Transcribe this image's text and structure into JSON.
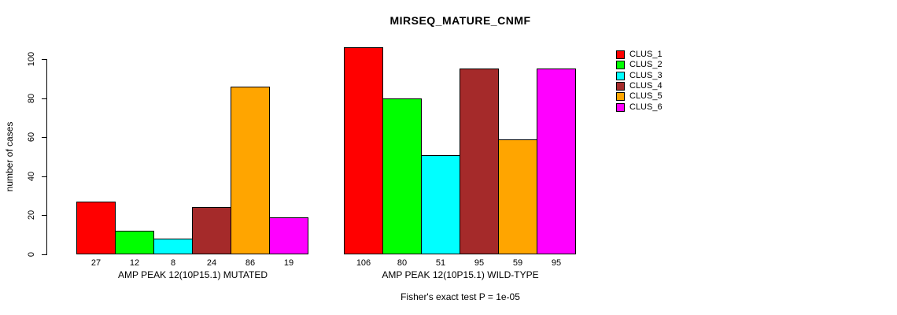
{
  "chart_data": {
    "type": "bar",
    "title": "MIRSEQ_MATURE_CNMF",
    "ylabel": "number of cases",
    "xlabel": "",
    "ylim": [
      0,
      106
    ],
    "yticks": [
      0,
      20,
      40,
      60,
      80,
      100
    ],
    "grid": false,
    "legend_position": "right",
    "series_names": [
      "CLUS_1",
      "CLUS_2",
      "CLUS_3",
      "CLUS_4",
      "CLUS_5",
      "CLUS_6"
    ],
    "colors": [
      "#FF0000",
      "#00FF00",
      "#00FFFF",
      "#A52A2A",
      "#FFA500",
      "#FF00FF"
    ],
    "groups": [
      {
        "label": "AMP PEAK 12(10P15.1) MUTATED",
        "values": [
          27,
          12,
          8,
          24,
          86,
          19
        ]
      },
      {
        "label": "AMP PEAK 12(10P15.1) WILD-TYPE",
        "values": [
          106,
          80,
          51,
          95,
          59,
          95
        ]
      }
    ],
    "bar_value_labels_shown": true,
    "annotation": "Fisher's exact test P = 1e-05"
  }
}
